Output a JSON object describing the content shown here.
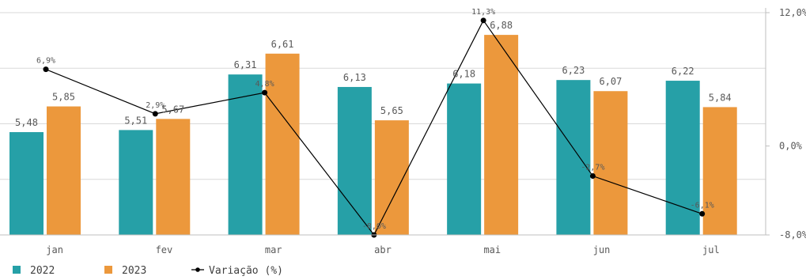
{
  "chart_data": {
    "type": "bar",
    "categories": [
      "jan",
      "fev",
      "mar",
      "abr",
      "mai",
      "jun",
      "jul"
    ],
    "series": [
      {
        "name": "2022",
        "values": [
          5.48,
          5.51,
          6.31,
          6.13,
          6.18,
          6.23,
          6.22
        ],
        "labels": [
          "5,48",
          "5,51",
          "6,31",
          "6,13",
          "6,18",
          "6,23",
          "6,22"
        ],
        "color": "#26a0a7"
      },
      {
        "name": "2023",
        "values": [
          5.85,
          5.67,
          6.61,
          5.65,
          6.88,
          6.07,
          5.84
        ],
        "labels": [
          "5,85",
          "5,67",
          "6,61",
          "5,65",
          "6,88",
          "6,07",
          "5,84"
        ],
        "color": "#ec983c"
      }
    ],
    "line_series": {
      "name": "Variação (%)",
      "values": [
        6.9,
        2.9,
        4.8,
        -8.0,
        11.3,
        -2.7,
        -6.1
      ],
      "labels": [
        "6,9%",
        "2,9%",
        "4,8%",
        "-8,0%",
        "11,3%",
        "-2,7%",
        "-6,1%"
      ],
      "color": "#000000"
    },
    "left_axis": {
      "ylim": [
        4.0,
        7.2
      ],
      "tick_labels": []
    },
    "right_axis": {
      "ylim": [
        -8.0,
        12.0
      ],
      "ticks": [
        12.0,
        0.0,
        -8.0
      ],
      "tick_labels": [
        "12,0%",
        "0,0%",
        "-8,0%"
      ]
    },
    "grid": true,
    "legend": "bottom-left",
    "colors": {
      "grid": "#d9d9d9",
      "axis": "#bfbfbf"
    }
  }
}
